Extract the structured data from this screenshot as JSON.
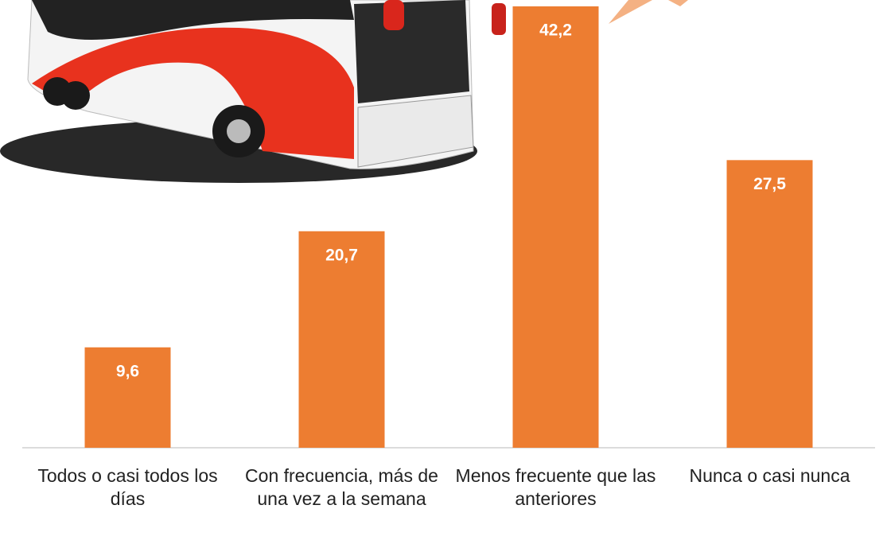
{
  "chart_data": {
    "type": "bar",
    "categories": [
      "Todos o casi todos los días",
      "Con frecuencia, más de una vez a la semana",
      "Menos frecuente que las anteriores",
      "Nunca o casi nunca"
    ],
    "values": [
      9.6,
      20.7,
      42.2,
      27.5
    ],
    "value_labels": [
      "9,6",
      "20,7",
      "42,2",
      "27,5"
    ],
    "color": "#ed7d31",
    "ylim": [
      0,
      42.2
    ]
  }
}
